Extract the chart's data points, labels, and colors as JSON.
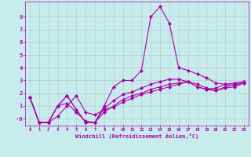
{
  "xlabel": "Windchill (Refroidissement éolien,°C)",
  "background_color": "#c8ecec",
  "line_color": "#aa00aa",
  "xlim": [
    -0.5,
    23.5
  ],
  "ylim": [
    -0.55,
    9.2
  ],
  "xticks": [
    0,
    1,
    2,
    3,
    4,
    5,
    6,
    7,
    8,
    9,
    10,
    11,
    12,
    13,
    14,
    15,
    16,
    17,
    18,
    19,
    20,
    21,
    22,
    23
  ],
  "yticks": [
    0,
    1,
    2,
    3,
    4,
    5,
    6,
    7,
    8
  ],
  "ytick_labels": [
    "-0",
    "1",
    "2",
    "3",
    "4",
    "5",
    "6",
    "7",
    "8"
  ],
  "lines": [
    [
      1.7,
      -0.3,
      -0.3,
      0.2,
      1.0,
      1.8,
      0.5,
      0.3,
      0.7,
      0.9,
      1.3,
      1.6,
      1.9,
      2.1,
      2.3,
      2.5,
      2.7,
      2.9,
      2.5,
      2.3,
      2.4,
      2.7,
      2.8,
      2.9
    ],
    [
      1.7,
      -0.3,
      -0.3,
      1.0,
      1.8,
      0.7,
      -0.3,
      -0.3,
      1.0,
      2.5,
      3.0,
      3.0,
      3.8,
      8.0,
      8.8,
      7.5,
      4.0,
      3.8,
      3.5,
      3.2,
      2.8,
      2.7,
      2.6,
      2.8
    ],
    [
      1.7,
      -0.3,
      -0.3,
      1.0,
      1.8,
      0.7,
      -0.3,
      -0.3,
      0.8,
      1.4,
      1.9,
      2.1,
      2.4,
      2.7,
      2.9,
      3.1,
      3.1,
      2.9,
      2.7,
      2.4,
      2.2,
      2.5,
      2.7,
      2.9
    ],
    [
      1.7,
      -0.3,
      -0.3,
      1.0,
      1.2,
      0.5,
      -0.2,
      -0.3,
      0.5,
      1.0,
      1.5,
      1.8,
      2.0,
      2.3,
      2.5,
      2.7,
      2.8,
      2.9,
      2.5,
      2.3,
      2.2,
      2.4,
      2.5,
      2.8
    ]
  ],
  "grid_color": "#aaaaaa",
  "marker": "D",
  "markersize": 2,
  "linewidth": 0.8
}
